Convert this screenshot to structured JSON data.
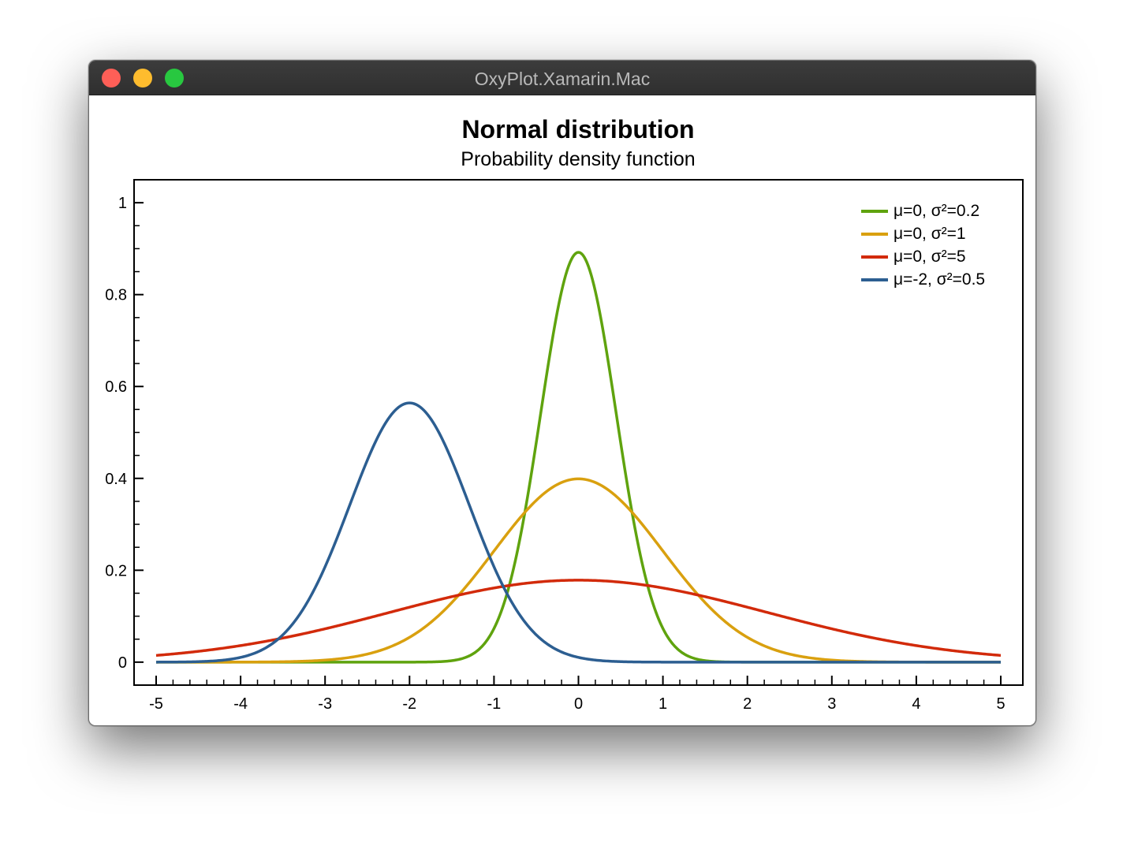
{
  "window": {
    "title": "OxyPlot.Xamarin.Mac"
  },
  "chart_data": {
    "type": "line",
    "title": "Normal distribution",
    "subtitle": "Probability density function",
    "xlim": [
      -5,
      5
    ],
    "ylim": [
      -0.05,
      1.05
    ],
    "xticks": [
      "-5",
      "-4",
      "-3",
      "-2",
      "-1",
      "0",
      "1",
      "2",
      "3",
      "4",
      "5"
    ],
    "yticks": [
      "0",
      "0.2",
      "0.4",
      "0.6",
      "0.8",
      "1"
    ],
    "legend_position": "top-right",
    "grid": false,
    "series": [
      {
        "name": "μ=0, σ²=0.2",
        "mean": 0,
        "variance": 0.2,
        "color": "#5fa30e",
        "points": [
          [
            -5,
            0
          ],
          [
            -2,
            0
          ],
          [
            -1.5,
            3.3e-06
          ],
          [
            -1,
            0.0074
          ],
          [
            -0.5,
            0.478
          ],
          [
            0,
            0.892
          ],
          [
            0.5,
            0.478
          ],
          [
            1,
            0.0074
          ],
          [
            1.5,
            3.3e-06
          ],
          [
            2,
            0
          ],
          [
            5,
            0
          ]
        ]
      },
      {
        "name": "μ=0, σ²=1",
        "mean": 0,
        "variance": 1,
        "color": "#d9a00f",
        "points": [
          [
            -5,
            1.5e-06
          ],
          [
            -4,
            0.00013
          ],
          [
            -3,
            0.0044
          ],
          [
            -2,
            0.054
          ],
          [
            -1,
            0.242
          ],
          [
            0,
            0.399
          ],
          [
            1,
            0.242
          ],
          [
            2,
            0.054
          ],
          [
            3,
            0.0044
          ],
          [
            4,
            0.00013
          ],
          [
            5,
            1.5e-06
          ]
        ]
      },
      {
        "name": "μ=0, σ²=5",
        "mean": 0,
        "variance": 5,
        "color": "#d22a0a",
        "points": [
          [
            -5,
            0.0146
          ],
          [
            -4,
            0.0361
          ],
          [
            -3,
            0.0725
          ],
          [
            -2,
            0.119
          ],
          [
            -1,
            0.161
          ],
          [
            0,
            0.178
          ],
          [
            1,
            0.161
          ],
          [
            2,
            0.119
          ],
          [
            3,
            0.0725
          ],
          [
            4,
            0.0361
          ],
          [
            5,
            0.0146
          ]
        ]
      },
      {
        "name": "μ=-2, σ²=0.5",
        "mean": -2,
        "variance": 0.5,
        "color": "#2c5e91",
        "points": [
          [
            -5,
            0
          ],
          [
            -4,
            0.0103
          ],
          [
            -3,
            0.207
          ],
          [
            -2,
            0.564
          ],
          [
            -1,
            0.207
          ],
          [
            0,
            0.0103
          ],
          [
            1,
            6.9e-05
          ],
          [
            5,
            0
          ]
        ]
      }
    ]
  }
}
